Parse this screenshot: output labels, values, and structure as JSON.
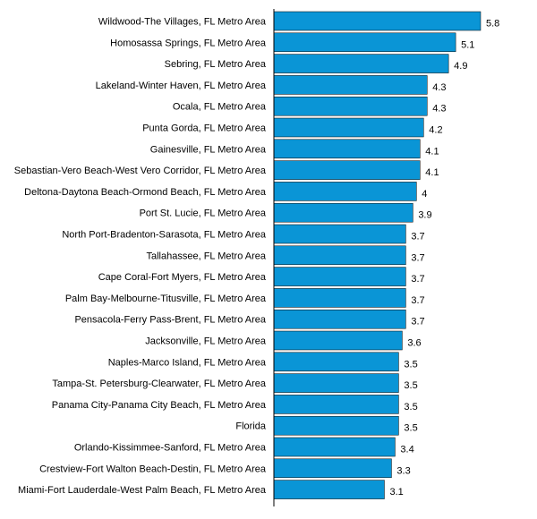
{
  "chart_data": {
    "type": "bar",
    "orientation": "horizontal",
    "title": "",
    "xlabel": "",
    "ylabel": "",
    "bar_color": "#0a95d6",
    "xlim": [
      0,
      5.8
    ],
    "grid": false,
    "categories": [
      "Wildwood-The Villages, FL Metro Area",
      "Homosassa Springs, FL Metro Area",
      "Sebring, FL Metro Area",
      "Lakeland-Winter Haven, FL Metro Area",
      "Ocala, FL Metro Area",
      "Punta Gorda, FL Metro Area",
      "Gainesville, FL Metro Area",
      "Sebastian-Vero Beach-West Vero Corridor, FL Metro Area",
      "Deltona-Daytona Beach-Ormond Beach, FL Metro Area",
      "Port St. Lucie, FL Metro Area",
      "North Port-Bradenton-Sarasota, FL Metro Area",
      "Tallahassee, FL Metro Area",
      "Cape Coral-Fort Myers, FL Metro Area",
      "Palm Bay-Melbourne-Titusville, FL Metro Area",
      "Pensacola-Ferry Pass-Brent, FL Metro Area",
      "Jacksonville, FL Metro Area",
      "Naples-Marco Island, FL Metro Area",
      "Tampa-St. Petersburg-Clearwater, FL Metro Area",
      "Panama City-Panama City Beach, FL Metro Area",
      "Florida",
      "Orlando-Kissimmee-Sanford, FL Metro Area",
      "Crestview-Fort Walton Beach-Destin, FL Metro Area",
      "Miami-Fort Lauderdale-West Palm Beach, FL Metro Area"
    ],
    "values": [
      5.8,
      5.1,
      4.9,
      4.3,
      4.3,
      4.2,
      4.1,
      4.1,
      4,
      3.9,
      3.7,
      3.7,
      3.7,
      3.7,
      3.7,
      3.6,
      3.5,
      3.5,
      3.5,
      3.5,
      3.4,
      3.3,
      3.1
    ],
    "value_labels": [
      "5.8",
      "5.1",
      "4.9",
      "4.3",
      "4.3",
      "4.2",
      "4.1",
      "4.1",
      "4",
      "3.9",
      "3.7",
      "3.7",
      "3.7",
      "3.7",
      "3.7",
      "3.6",
      "3.5",
      "3.5",
      "3.5",
      "3.5",
      "3.4",
      "3.3",
      "3.1"
    ]
  }
}
